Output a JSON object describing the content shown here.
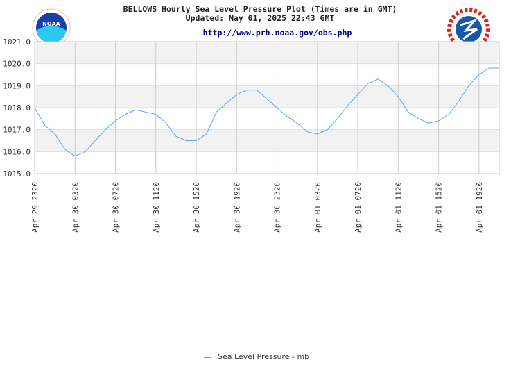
{
  "chart_data": {
    "type": "line",
    "title": "BELLOWS Hourly Sea Level Pressure Plot (Times are in GMT)",
    "subtitle": "Updated: May 01, 2025 22:43 GMT",
    "source": "http://www.prh.noaa.gov/obs.php",
    "logo_text": "NOAA",
    "categories": [
      "Apr 29 2320",
      null,
      null,
      null,
      "Apr 30 0320",
      null,
      null,
      null,
      "Apr 30 0720",
      null,
      null,
      null,
      "Apr 30 1120",
      null,
      null,
      null,
      "Apr 30 1520",
      null,
      null,
      null,
      "Apr 30 1920",
      null,
      null,
      null,
      "Apr 30 2320",
      null,
      null,
      null,
      "Apr 01 0320",
      null,
      null,
      null,
      "Apr 01 0720",
      null,
      null,
      null,
      "Apr 01 1120",
      null,
      null,
      null,
      "Apr 01 1520",
      null,
      null,
      null,
      "Apr 01 1920",
      null,
      null
    ],
    "series": [
      {
        "name": "Sea Level Pressure - mb",
        "color": "#5aa5f0",
        "values": [
          1018.0,
          1017.2,
          1016.8,
          1016.1,
          1015.8,
          1016.0,
          1016.5,
          1017.0,
          1017.4,
          1017.7,
          1017.9,
          1017.8,
          1017.7,
          1017.3,
          1016.7,
          1016.5,
          1016.5,
          1016.8,
          1017.8,
          1018.2,
          1018.6,
          1018.8,
          1018.8,
          1018.4,
          1018.0,
          1017.6,
          1017.3,
          1016.9,
          1016.8,
          1017.0,
          1017.5,
          1018.1,
          1018.6,
          1019.1,
          1019.3,
          1019.0,
          1018.5,
          1017.8,
          1017.5,
          1017.3,
          1017.4,
          1017.7,
          1018.3,
          1019.0,
          1019.5,
          1019.8,
          1019.8
        ]
      }
    ],
    "ylim": [
      1015,
      1021
    ],
    "yticks": [
      {
        "value": 1015,
        "label": "1015.0"
      },
      {
        "value": 1016,
        "label": "1016.0"
      },
      {
        "value": 1017,
        "label": "1017.0"
      },
      {
        "value": 1018,
        "label": "1018.0"
      },
      {
        "value": 1019,
        "label": "1019.0"
      },
      {
        "value": 1020,
        "label": "1020.0"
      },
      {
        "value": 1021,
        "label": "1021.0"
      }
    ],
    "grid": true,
    "legend": "bottom"
  }
}
